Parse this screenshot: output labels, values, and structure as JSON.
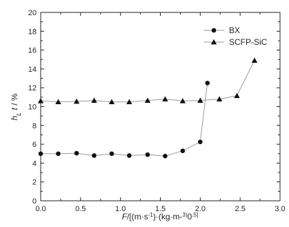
{
  "chart_data": {
    "type": "line",
    "title": "",
    "xlabel": "F/[(m·s-1)·(kg·m-3)0.5]",
    "ylabel": "hL t / %",
    "xlim": [
      0.0,
      3.0
    ],
    "ylim": [
      0,
      20
    ],
    "xticks": [
      "0.0",
      "0.5",
      "1.0",
      "1.5",
      "2.0",
      "2.5",
      "3.0"
    ],
    "yticks": [
      "0",
      "2",
      "4",
      "6",
      "8",
      "10",
      "12",
      "14",
      "16",
      "18",
      "20"
    ],
    "grid": false,
    "legend_position": "top-right",
    "series": [
      {
        "name": "BX",
        "marker": "circle",
        "x": [
          0.0,
          0.22,
          0.45,
          0.67,
          0.89,
          1.11,
          1.34,
          1.56,
          1.78,
          2.0,
          2.09
        ],
        "y": [
          5.0,
          5.0,
          5.05,
          4.8,
          5.0,
          4.8,
          4.9,
          4.75,
          5.3,
          6.25,
          12.5
        ]
      },
      {
        "name": "SCFP-SiC",
        "marker": "triangle",
        "x": [
          0.0,
          0.22,
          0.45,
          0.67,
          0.89,
          1.11,
          1.34,
          1.56,
          1.78,
          2.0,
          2.24,
          2.46,
          2.68
        ],
        "y": [
          10.6,
          10.5,
          10.55,
          10.65,
          10.5,
          10.5,
          10.65,
          10.8,
          10.6,
          10.65,
          10.8,
          11.15,
          14.9
        ]
      }
    ]
  }
}
